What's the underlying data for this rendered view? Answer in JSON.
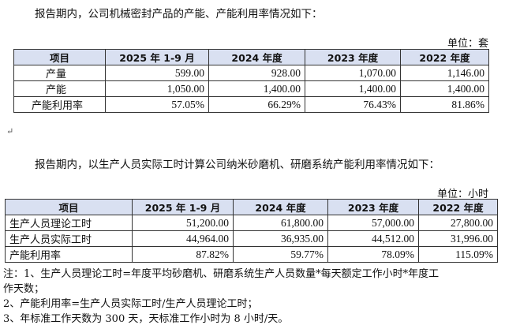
{
  "section1": {
    "intro": "报告期内，公司机械密封产品的产能、产能利用率情况如下：",
    "unit": "单位：套",
    "headers": [
      "项目",
      "2025 年 1-9 月",
      "2024 年度",
      "2023 年度",
      "2022 年度"
    ],
    "rows": [
      [
        "产量",
        "599.00",
        "928.00",
        "1,070.00",
        "1,146.00"
      ],
      [
        "产能",
        "1,050.00",
        "1,400.00",
        "1,400.00",
        "1,400.00"
      ],
      [
        "产能利用率",
        "57.05%",
        "66.29%",
        "76.43%",
        "81.86%"
      ]
    ]
  },
  "paragraph_mark": "↵",
  "section2": {
    "intro": "报告期内，以生产人员实际工时计算公司纳米砂磨机、研磨系统产能利用率情况如下：",
    "unit": "单位：小时",
    "headers": [
      "项目",
      "2025 年 1-9 月",
      "2024 年度",
      "2023 年度",
      "2022 年度"
    ],
    "rows": [
      [
        "生产人员理论工时",
        "51,200.00",
        "61,800.00",
        "57,000.00",
        "27,800.00"
      ],
      [
        "生产人员实际工时",
        "44,964.00",
        "36,935.00",
        "44,512.00",
        "31,996.00"
      ],
      [
        "产能利用率",
        "87.82%",
        "59.77%",
        "78.09%",
        "115.09%"
      ]
    ]
  },
  "notes": [
    "注：1、生产人员理论工时=年度平均砂磨机、研磨系统生产人员数量*每天额定工作小时*年度工",
    "作天数；",
    "2、产能利用率=生产人员实际工时/生产人员理论工时；",
    "3、年标准工作天数为 300 天，天标准工作小时为 8 小时/天。"
  ]
}
